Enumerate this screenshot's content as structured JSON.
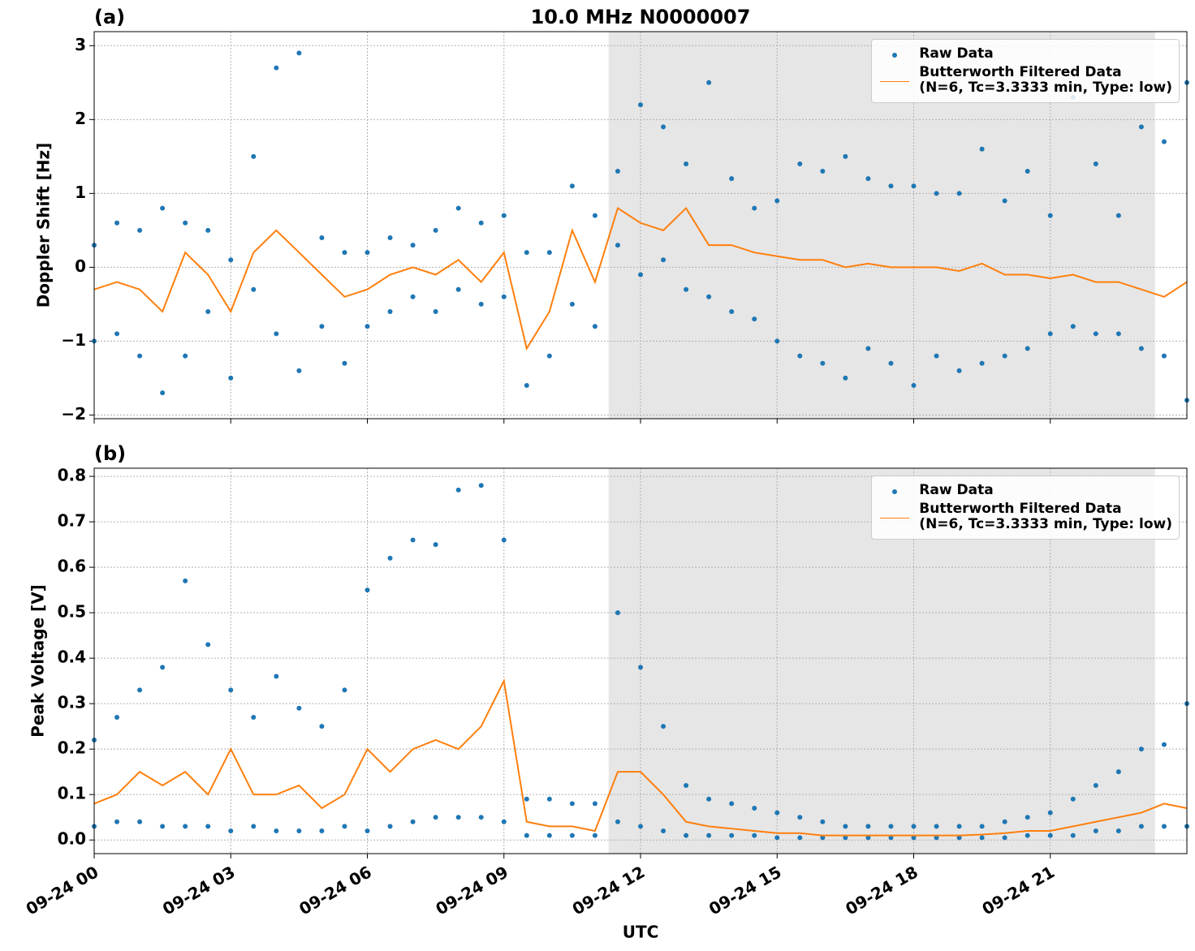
{
  "chart_data": [
    {
      "type": "scatter-line",
      "panel_label": "(a)",
      "title": "10.0 MHz N0000007",
      "ylabel": "Doppler Shift [Hz]",
      "xlim": [
        0,
        24
      ],
      "xticks": [
        0,
        3,
        6,
        9,
        12,
        15,
        18,
        21
      ],
      "ylim": [
        -2.05,
        3.19
      ],
      "yticks": [
        {
          "value": -2,
          "label": "−2"
        },
        {
          "value": -1,
          "label": "−1"
        },
        0,
        1,
        2,
        3
      ],
      "grid": true,
      "legend": "upper right",
      "shade": [
        11.3,
        23.3
      ],
      "series": [
        {
          "name": "Raw Data",
          "color": "#1f77b4",
          "x": [
            0,
            0,
            0.5,
            0.5,
            1,
            1,
            1.5,
            1.5,
            2,
            2,
            2.5,
            2.5,
            3,
            3,
            3.5,
            3.5,
            4,
            4,
            4.5,
            4.5,
            5,
            5,
            5.5,
            5.5,
            6,
            6,
            6.5,
            6.5,
            7,
            7,
            7.5,
            7.5,
            8,
            8,
            8.5,
            8.5,
            9,
            9,
            9.5,
            9.5,
            10,
            10,
            10.5,
            10.5,
            11,
            11,
            11.5,
            11.5,
            12,
            12,
            12.5,
            12.5,
            13,
            13,
            13.5,
            13.5,
            14,
            14,
            14.5,
            14.5,
            15,
            15,
            15.5,
            15.5,
            16,
            16,
            16.5,
            16.5,
            17,
            17,
            17.5,
            17.5,
            18,
            18,
            18.5,
            18.5,
            19,
            19,
            19.5,
            19.5,
            20,
            20,
            20.5,
            20.5,
            21,
            21,
            21.5,
            21.5,
            22,
            22,
            22.5,
            22.5,
            23,
            23,
            23.5,
            23.5,
            24,
            24
          ],
          "values": [
            0.3,
            -1.0,
            0.6,
            -0.9,
            0.5,
            -1.2,
            0.8,
            -1.7,
            0.6,
            -1.2,
            0.5,
            -0.6,
            0.1,
            -1.5,
            1.5,
            -0.3,
            2.7,
            -0.9,
            2.9,
            -1.4,
            0.4,
            -0.8,
            0.2,
            -1.3,
            0.2,
            -0.8,
            0.4,
            -0.6,
            0.3,
            -0.4,
            0.5,
            -0.6,
            0.8,
            -0.3,
            0.6,
            -0.5,
            0.7,
            -0.4,
            0.2,
            -1.6,
            0.2,
            -1.2,
            1.1,
            -0.5,
            0.7,
            -0.8,
            1.3,
            0.3,
            2.2,
            -0.1,
            1.9,
            0.1,
            1.4,
            -0.3,
            2.5,
            -0.4,
            1.2,
            -0.6,
            0.8,
            -0.7,
            0.9,
            -1.0,
            1.4,
            -1.2,
            1.3,
            -1.3,
            1.5,
            -1.5,
            1.2,
            -1.1,
            1.1,
            -1.3,
            1.1,
            -1.6,
            1.0,
            -1.2,
            1.0,
            -1.4,
            1.6,
            -1.3,
            0.9,
            -1.2,
            1.3,
            -1.1,
            0.7,
            -0.9,
            2.3,
            -0.8,
            1.4,
            -0.9,
            0.7,
            -0.9,
            1.9,
            -1.1,
            1.7,
            -1.2,
            2.5,
            -1.8
          ]
        },
        {
          "name": "Butterworth Filtered Data\n(N=6, Tc=3.3333 min, Type: low)",
          "color": "#ff7f0e",
          "x": [
            0,
            0.5,
            1,
            1.5,
            2,
            2.5,
            3,
            3.5,
            4,
            4.5,
            5,
            5.5,
            6,
            6.5,
            7,
            7.5,
            8,
            8.5,
            9,
            9.5,
            10,
            10.5,
            11,
            11.5,
            12,
            12.5,
            13,
            13.5,
            14,
            14.5,
            15,
            15.5,
            16,
            16.5,
            17,
            17.5,
            18,
            18.5,
            19,
            19.5,
            20,
            20.5,
            21,
            21.5,
            22,
            22.5,
            23,
            23.5,
            24
          ],
          "values": [
            -0.3,
            -0.2,
            -0.3,
            -0.6,
            0.2,
            -0.1,
            -0.6,
            0.2,
            0.5,
            0.2,
            -0.1,
            -0.4,
            -0.3,
            -0.1,
            0.0,
            -0.1,
            0.1,
            -0.2,
            0.2,
            -1.1,
            -0.6,
            0.5,
            -0.2,
            0.8,
            0.6,
            0.5,
            0.8,
            0.3,
            0.3,
            0.2,
            0.15,
            0.1,
            0.1,
            0.0,
            0.05,
            0.0,
            0.0,
            0.0,
            -0.05,
            0.05,
            -0.1,
            -0.1,
            -0.15,
            -0.1,
            -0.2,
            -0.2,
            -0.3,
            -0.4,
            -0.2
          ]
        }
      ]
    },
    {
      "type": "scatter-line",
      "panel_label": "(b)",
      "ylabel": "Peak Voltage [V]",
      "xlabel": "UTC",
      "xlim": [
        0,
        24
      ],
      "xticks": [
        {
          "value": 0,
          "label": "09-24 00"
        },
        {
          "value": 3,
          "label": "09-24 03"
        },
        {
          "value": 6,
          "label": "09-24 06"
        },
        {
          "value": 9,
          "label": "09-24 09"
        },
        {
          "value": 12,
          "label": "09-24 12"
        },
        {
          "value": 15,
          "label": "09-24 15"
        },
        {
          "value": 18,
          "label": "09-24 18"
        },
        {
          "value": 21,
          "label": "09-24 21"
        }
      ],
      "ylim": [
        -0.03,
        0.818
      ],
      "yticks": [
        {
          "value": 0,
          "label": "0.0"
        },
        0.1,
        0.2,
        0.3,
        0.4,
        0.5,
        0.6,
        0.7,
        0.8
      ],
      "grid": true,
      "legend": "upper right",
      "shade": [
        11.3,
        23.3
      ],
      "series": [
        {
          "name": "Raw Data",
          "color": "#1f77b4",
          "x": [
            0,
            0,
            0.5,
            0.5,
            1,
            1,
            1.5,
            1.5,
            2,
            2,
            2.5,
            2.5,
            3,
            3,
            3.5,
            3.5,
            4,
            4,
            4.5,
            4.5,
            5,
            5,
            5.5,
            5.5,
            6,
            6,
            6.5,
            6.5,
            7,
            7,
            7.5,
            7.5,
            8,
            8,
            8.5,
            8.5,
            9,
            9,
            9.5,
            9.5,
            10,
            10,
            10.5,
            10.5,
            11,
            11,
            11.5,
            11.5,
            12,
            12,
            12.5,
            12.5,
            13,
            13,
            13.5,
            13.5,
            14,
            14,
            14.5,
            14.5,
            15,
            15,
            15.5,
            15.5,
            16,
            16,
            16.5,
            16.5,
            17,
            17,
            17.5,
            17.5,
            18,
            18,
            18.5,
            18.5,
            19,
            19,
            19.5,
            19.5,
            20,
            20,
            20.5,
            20.5,
            21,
            21,
            21.5,
            21.5,
            22,
            22,
            22.5,
            22.5,
            23,
            23,
            23.5,
            23.5,
            24,
            24
          ],
          "values": [
            0.22,
            0.03,
            0.27,
            0.04,
            0.33,
            0.04,
            0.38,
            0.03,
            0.57,
            0.03,
            0.43,
            0.03,
            0.33,
            0.02,
            0.27,
            0.03,
            0.36,
            0.02,
            0.29,
            0.02,
            0.25,
            0.02,
            0.33,
            0.03,
            0.55,
            0.02,
            0.62,
            0.03,
            0.66,
            0.04,
            0.65,
            0.05,
            0.77,
            0.05,
            0.78,
            0.05,
            0.66,
            0.04,
            0.09,
            0.01,
            0.09,
            0.01,
            0.08,
            0.01,
            0.08,
            0.01,
            0.5,
            0.04,
            0.38,
            0.03,
            0.25,
            0.02,
            0.12,
            0.01,
            0.09,
            0.01,
            0.08,
            0.01,
            0.07,
            0.01,
            0.06,
            0.005,
            0.05,
            0.005,
            0.04,
            0.005,
            0.03,
            0.005,
            0.03,
            0.005,
            0.03,
            0.005,
            0.03,
            0.005,
            0.03,
            0.005,
            0.03,
            0.005,
            0.03,
            0.005,
            0.04,
            0.005,
            0.05,
            0.01,
            0.06,
            0.01,
            0.09,
            0.01,
            0.12,
            0.02,
            0.15,
            0.02,
            0.2,
            0.03,
            0.21,
            0.03,
            0.3,
            0.03
          ]
        },
        {
          "name": "Butterworth Filtered Data\n(N=6, Tc=3.3333 min, Type: low)",
          "color": "#ff7f0e",
          "x": [
            0,
            0.5,
            1,
            1.5,
            2,
            2.5,
            3,
            3.5,
            4,
            4.5,
            5,
            5.5,
            6,
            6.5,
            7,
            7.5,
            8,
            8.5,
            9,
            9.5,
            10,
            10.5,
            11,
            11.5,
            12,
            12.5,
            13,
            13.5,
            14,
            14.5,
            15,
            15.5,
            16,
            16.5,
            17,
            17.5,
            18,
            18.5,
            19,
            19.5,
            20,
            20.5,
            21,
            21.5,
            22,
            22.5,
            23,
            23.5,
            24
          ],
          "values": [
            0.08,
            0.1,
            0.15,
            0.12,
            0.15,
            0.1,
            0.2,
            0.1,
            0.1,
            0.12,
            0.07,
            0.1,
            0.2,
            0.15,
            0.2,
            0.22,
            0.2,
            0.25,
            0.35,
            0.04,
            0.03,
            0.03,
            0.02,
            0.15,
            0.15,
            0.1,
            0.04,
            0.03,
            0.025,
            0.02,
            0.015,
            0.015,
            0.01,
            0.01,
            0.01,
            0.01,
            0.01,
            0.01,
            0.01,
            0.012,
            0.015,
            0.02,
            0.02,
            0.03,
            0.04,
            0.05,
            0.06,
            0.08,
            0.07
          ]
        }
      ]
    }
  ]
}
